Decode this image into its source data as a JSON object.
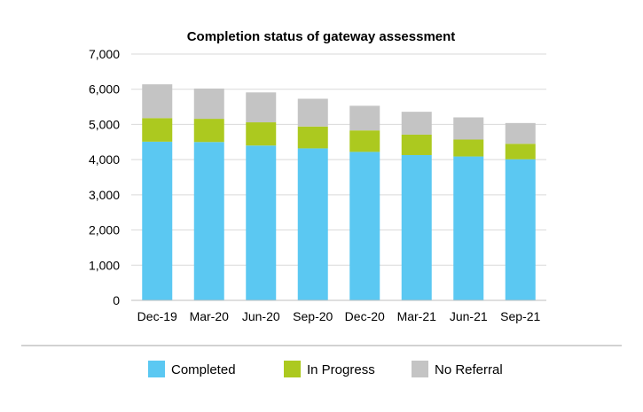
{
  "colors": {
    "completed": "#5bc8f2",
    "in_progress": "#acc91f",
    "no_referral": "#c4c4c4",
    "gridline": "#d9d9d9",
    "axis": "#bfbfbf"
  },
  "chart_data": {
    "type": "bar",
    "stacked": true,
    "title": "Completion status of gateway assessment",
    "xlabel": "",
    "ylabel": "",
    "categories": [
      "Dec-19",
      "Mar-20",
      "Jun-20",
      "Sep-20",
      "Dec-20",
      "Mar-21",
      "Jun-21",
      "Sep-21"
    ],
    "ylim": [
      0,
      7000
    ],
    "yticks": [
      0,
      1000,
      2000,
      3000,
      4000,
      5000,
      6000,
      7000
    ],
    "ytick_labels": [
      "0",
      "1,000",
      "2,000",
      "3,000",
      "4,000",
      "5,000",
      "6,000",
      "7,000"
    ],
    "grid": true,
    "legend_position": "bottom",
    "series": [
      {
        "name": "Completed",
        "values": [
          4510,
          4500,
          4400,
          4320,
          4220,
          4130,
          4090,
          4010
        ]
      },
      {
        "name": "In Progress",
        "values": [
          670,
          660,
          660,
          620,
          610,
          580,
          480,
          440
        ]
      },
      {
        "name": "No Referral",
        "values": [
          960,
          860,
          850,
          790,
          700,
          650,
          630,
          590
        ]
      }
    ]
  }
}
